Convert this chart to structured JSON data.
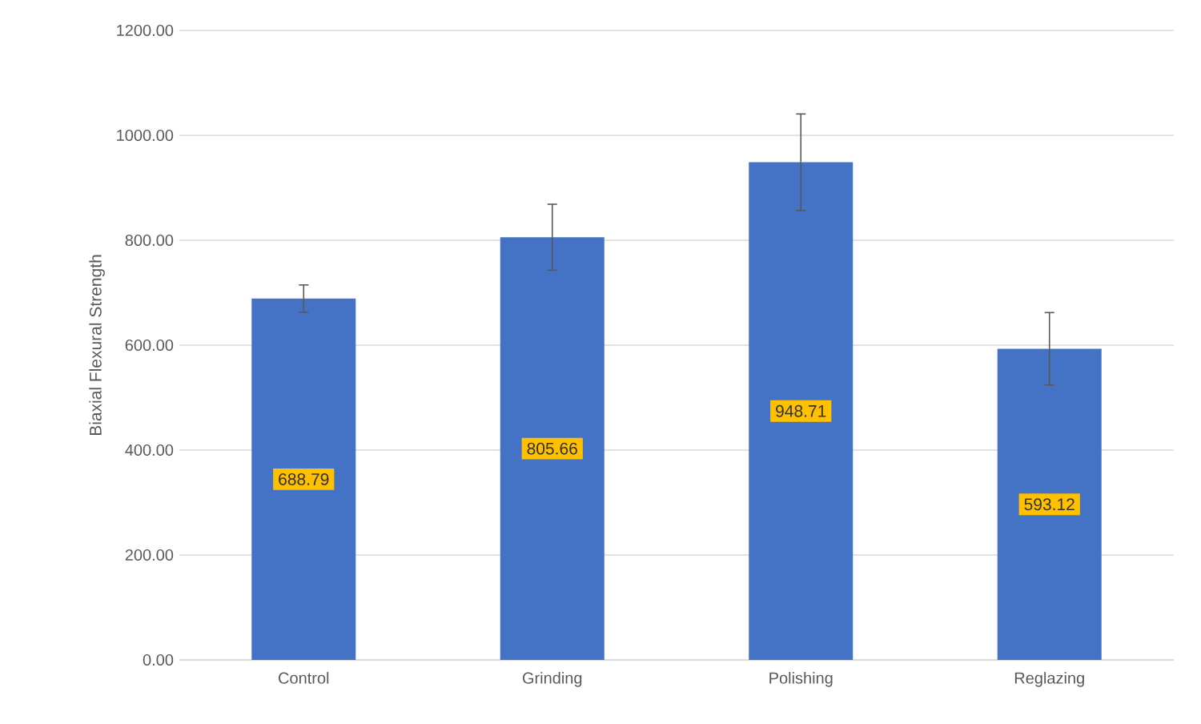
{
  "chart_data": {
    "type": "bar",
    "ylabel": "Biaxial Flexural Strength",
    "categories": [
      "Control",
      "Grinding",
      "Polishing",
      "Reglazing"
    ],
    "values": [
      688.79,
      805.66,
      948.71,
      593.12
    ],
    "value_labels": [
      "688.79",
      "805.66",
      "948.71",
      "593.12"
    ],
    "errors": [
      26,
      63,
      92,
      69
    ],
    "color": "#4472c4",
    "ylim": [
      0,
      1200
    ],
    "yticks": [
      {
        "value": 0,
        "label": "0.00"
      },
      {
        "value": 200,
        "label": "200.00"
      },
      {
        "value": 400,
        "label": "400.00"
      },
      {
        "value": 600,
        "label": "600.00"
      },
      {
        "value": 800,
        "label": "800.00"
      },
      {
        "value": 1000,
        "label": "1000.00"
      },
      {
        "value": 1200,
        "label": "1200.00"
      }
    ],
    "grid": "y"
  }
}
